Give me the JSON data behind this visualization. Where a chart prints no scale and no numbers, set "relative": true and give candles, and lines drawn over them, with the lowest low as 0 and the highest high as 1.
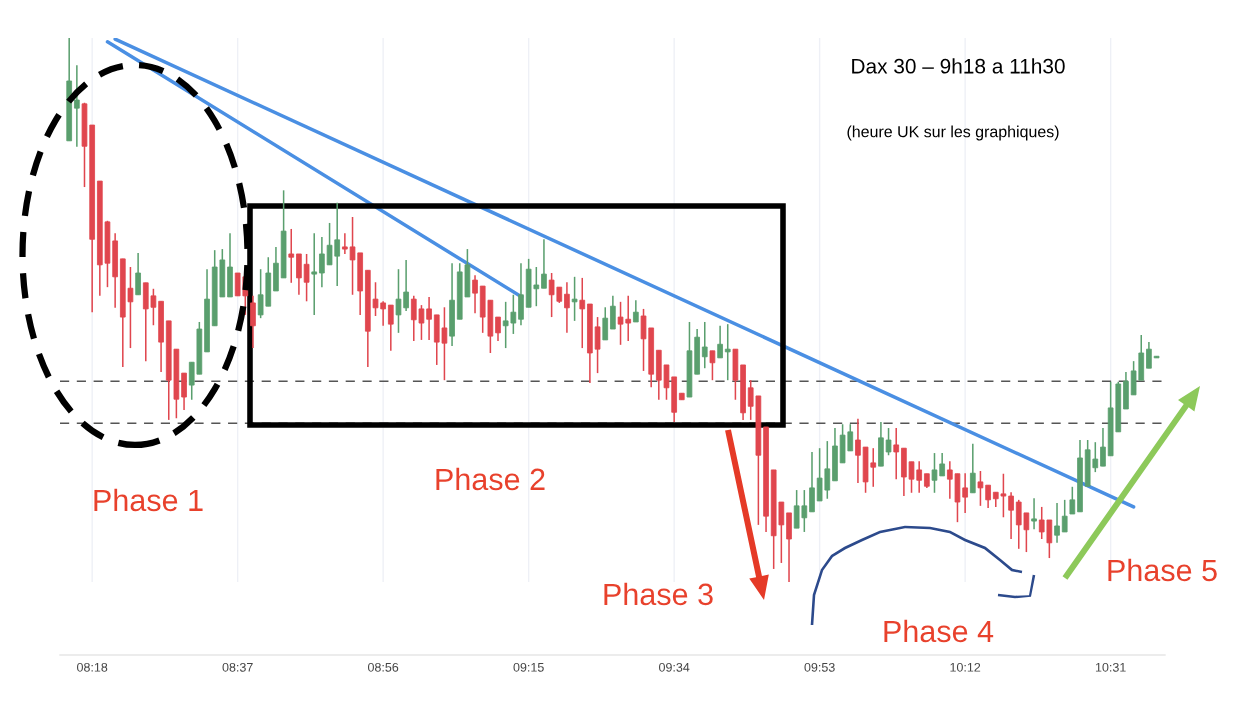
{
  "chart_data": {
    "type": "candlestick",
    "title": "Dax 30 – 9h18 a 11h30",
    "subtitle": "(heure UK sur les graphiques)",
    "annotations": [
      "Phase 1",
      "Phase 2",
      "Phase 3",
      "Phase 4",
      "Phase 5"
    ],
    "relative": true,
    "colors": [
      "#5a9f6e",
      "#5a9f6e",
      "#e0464e",
      "#e0464e",
      "#e0464e",
      "#e0464e",
      "#e0464e",
      "#e0464e",
      "#e0464e",
      "#5a9f6e",
      "#e0464e",
      "#e0464e",
      "#e0464e",
      "#e0464e",
      "#e0464e",
      "#e0464e",
      "#5a9f6e",
      "#5a9f6e",
      "#5a9f6e",
      "#5a9f6e",
      "#5a9f6e",
      "#5a9f6e",
      "#e0464e",
      "#e0464e",
      "#e0464e",
      "#5a9f6e",
      "#5a9f6e",
      "#5a9f6e",
      "#5a9f6e",
      "#e0464e",
      "#e0464e",
      "#e0464e",
      "#5a9f6e",
      "#5a9f6e",
      "#5a9f6e",
      "#5a9f6e",
      "#e0464e",
      "#e0464e",
      "#e0464e",
      "#e0464e",
      "#e0464e",
      "#e0464e",
      "#e0464e",
      "#5a9f6e",
      "#5a9f6e",
      "#e0464e",
      "#e0464e",
      "#e0464e",
      "#e0464e",
      "#e0464e",
      "#5a9f6e",
      "#5a9f6e",
      "#5a9f6e",
      "#e0464e",
      "#e0464e",
      "#e0464e",
      "#e0464e",
      "#5a9f6e",
      "#5a9f6e",
      "#5a9f6e",
      "#5a9f6e",
      "#5a9f6e",
      "#5a9f6e",
      "#e0464e",
      "#e0464e",
      "#e0464e",
      "#5a9f6e",
      "#e0464e",
      "#e0464e",
      "#e0464e",
      "#5a9f6e",
      "#5a9f6e",
      "#e0464e",
      "#e0464e",
      "#5a9f6e",
      "#e0464e",
      "#e0464e",
      "#e0464e",
      "#e0464e",
      "#e0464e",
      "#e0464e",
      "#5a9f6e",
      "#5a9f6e",
      "#5a9f6e",
      "#e0464e",
      "#5a9f6e",
      "#5a9f6e",
      "#e0464e",
      "#e0464e",
      "#e0464e",
      "#e0464e",
      "#e0464e",
      "#e0464e",
      "#e0464e",
      "#e0464e",
      "#5a9f6e",
      "#5a9f6e",
      "#5a9f6e",
      "#5a9f6e",
      "#5a9f6e",
      "#5a9f6e",
      "#5a9f6e",
      "#5a9f6e",
      "#e0464e",
      "#e0464e",
      "#e0464e",
      "#5a9f6e",
      "#5a9f6e",
      "#e0464e",
      "#e0464e",
      "#e0464e",
      "#e0464e",
      "#e0464e",
      "#5a9f6e",
      "#5a9f6e",
      "#e0464e",
      "#e0464e",
      "#e0464e",
      "#5a9f6e",
      "#e0464e",
      "#e0464e",
      "#e0464e",
      "#e0464e",
      "#e0464e",
      "#e0464e",
      "#e0464e",
      "#5a9f6e",
      "#e0464e",
      "#e0464e",
      "#5a9f6e",
      "#5a9f6e",
      "#5a9f6e",
      "#5a9f6e",
      "#5a9f6e",
      "#5a9f6e",
      "#5a9f6e",
      "#5a9f6e",
      "#5a9f6e",
      "#5a9f6e",
      "#5a9f6e",
      "#5a9f6e",
      "#5a9f6e",
      "#5a9f6e"
    ],
    "xlim": [
      8.23,
      10.635
    ],
    "xticks": [
      {
        "value": 8.3,
        "label": "08:18"
      },
      {
        "value": 8.6167,
        "label": "08:37"
      },
      {
        "value": 8.9333,
        "label": "08:56"
      },
      {
        "value": 9.25,
        "label": "09:15"
      },
      {
        "value": 9.5667,
        "label": "09:34"
      },
      {
        "value": 9.8833,
        "label": "09:53"
      },
      {
        "value": 10.2,
        "label": "10:12"
      },
      {
        "value": 10.5167,
        "label": "10:31"
      }
    ],
    "grid": "x",
    "legend": false,
    "x": [
      8.25,
      8.2667,
      8.2833,
      8.3,
      8.3167,
      8.3333,
      8.35,
      8.3667,
      8.3833,
      8.4,
      8.4167,
      8.4333,
      8.45,
      8.4667,
      8.4833,
      8.5,
      8.5167,
      8.5333,
      8.55,
      8.5667,
      8.5833,
      8.6,
      8.6167,
      8.6333,
      8.65,
      8.6667,
      8.6833,
      8.7,
      8.7167,
      8.7333,
      8.75,
      8.7667,
      8.7833,
      8.8,
      8.8167,
      8.8333,
      8.85,
      8.8667,
      8.8833,
      8.9,
      8.9167,
      8.9333,
      8.95,
      8.9667,
      8.9833,
      9,
      9.0167,
      9.0333,
      9.05,
      9.0667,
      9.0833,
      9.1,
      9.1167,
      9.1333,
      9.15,
      9.1667,
      9.1833,
      9.2,
      9.2167,
      9.2333,
      9.25,
      9.2667,
      9.2833,
      9.3,
      9.3167,
      9.3333,
      9.35,
      9.3667,
      9.3833,
      9.4,
      9.4167,
      9.4333,
      9.45,
      9.4667,
      9.4833,
      9.5,
      9.5167,
      9.5333,
      9.55,
      9.5667,
      9.5833,
      9.6,
      9.6167,
      9.6333,
      9.65,
      9.6667,
      9.6833,
      9.7,
      9.7167,
      9.7333,
      9.75,
      9.7667,
      9.7833,
      9.8,
      9.8167,
      9.8333,
      9.85,
      9.8667,
      9.8833,
      9.9,
      9.9167,
      9.9333,
      9.95,
      9.9667,
      9.9833,
      10,
      10.0167,
      10.0333,
      10.05,
      10.0667,
      10.0833,
      10.1,
      10.1167,
      10.1333,
      10.15,
      10.1667,
      10.1833,
      10.2,
      10.2167,
      10.2333,
      10.25,
      10.2667,
      10.2833,
      10.3,
      10.3167,
      10.3333,
      10.35,
      10.3667,
      10.3833,
      10.4,
      10.4167,
      10.4333,
      10.45,
      10.4667,
      10.4833,
      10.5,
      10.5167,
      10.5333,
      10.55,
      10.5667,
      10.5833,
      10.6,
      10.6167
    ],
    "ohlc": [
      [
        0.811,
        1,
        0.811,
        0.921
      ],
      [
        0.871,
        0.95,
        0.8,
        0.886
      ],
      [
        0.879,
        0.881,
        0.726,
        0.801
      ],
      [
        0.84,
        0.84,
        0.496,
        0.63
      ],
      [
        0.737,
        0.737,
        0.526,
        0.583
      ],
      [
        0.662,
        0.664,
        0.542,
        0.586
      ],
      [
        0.627,
        0.641,
        0.504,
        0.561
      ],
      [
        0.594,
        0.594,
        0.395,
        0.487
      ],
      [
        0.54,
        0.579,
        0.43,
        0.515
      ],
      [
        0.528,
        0.605,
        0.528,
        0.568
      ],
      [
        0.55,
        0.55,
        0.406,
        0.502
      ],
      [
        0.526,
        0.539,
        0.472,
        0.505
      ],
      [
        0.516,
        0.516,
        0.386,
        0.441
      ],
      [
        0.48,
        0.48,
        0.298,
        0.371
      ],
      [
        0.428,
        0.428,
        0.301,
        0.336
      ],
      [
        0.384,
        0.384,
        0.316,
        0.34
      ],
      [
        0.362,
        0.404,
        0.335,
        0.404
      ],
      [
        0.382,
        0.478,
        0.382,
        0.465
      ],
      [
        0.423,
        0.575,
        0.423,
        0.52
      ],
      [
        0.471,
        0.61,
        0.471,
        0.579
      ],
      [
        0.524,
        0.612,
        0.524,
        0.592
      ],
      [
        0.524,
        0.641,
        0.524,
        0.579
      ],
      [
        0.568,
        0.568,
        0.526,
        0.526
      ],
      [
        0.561,
        0.561,
        0.491,
        0.526
      ],
      [
        0.513,
        0.526,
        0.43,
        0.471
      ],
      [
        0.491,
        0.575,
        0.485,
        0.528
      ],
      [
        0.507,
        0.597,
        0.507,
        0.568
      ],
      [
        0.535,
        0.616,
        0.535,
        0.586
      ],
      [
        0.559,
        0.72,
        0.559,
        0.645
      ],
      [
        0.603,
        0.649,
        0.55,
        0.597
      ],
      [
        0.603,
        0.603,
        0.528,
        0.559
      ],
      [
        0.584,
        0.603,
        0.516,
        0.551
      ],
      [
        0.566,
        0.641,
        0.491,
        0.57
      ],
      [
        0.568,
        0.634,
        0.542,
        0.603
      ],
      [
        0.583,
        0.66,
        0.583,
        0.619
      ],
      [
        0.599,
        0.697,
        0.544,
        0.629
      ],
      [
        0.616,
        0.641,
        0.603,
        0.612
      ],
      [
        0.616,
        0.671,
        0.528,
        0.592
      ],
      [
        0.605,
        0.605,
        0.491,
        0.535
      ],
      [
        0.573,
        0.573,
        0.395,
        0.461
      ],
      [
        0.52,
        0.551,
        0.489,
        0.504
      ],
      [
        0.513,
        0.516,
        0.471,
        0.502
      ],
      [
        0.509,
        0.509,
        0.425,
        0.474
      ],
      [
        0.491,
        0.575,
        0.458,
        0.52
      ],
      [
        0.504,
        0.592,
        0.498,
        0.533
      ],
      [
        0.52,
        0.526,
        0.443,
        0.482
      ],
      [
        0.502,
        0.509,
        0.445,
        0.476
      ],
      [
        0.502,
        0.524,
        0.445,
        0.483
      ],
      [
        0.491,
        0.491,
        0.399,
        0.441
      ],
      [
        0.467,
        0.505,
        0.371,
        0.439
      ],
      [
        0.452,
        0.586,
        0.434,
        0.518
      ],
      [
        0.483,
        0.586,
        0.483,
        0.57
      ],
      [
        0.524,
        0.612,
        0.524,
        0.583
      ],
      [
        0.555,
        0.564,
        0.494,
        0.531
      ],
      [
        0.544,
        0.544,
        0.458,
        0.487
      ],
      [
        0.518,
        0.518,
        0.421,
        0.452
      ],
      [
        0.487,
        0.487,
        0.443,
        0.458
      ],
      [
        0.471,
        0.515,
        0.43,
        0.48
      ],
      [
        0.476,
        0.528,
        0.456,
        0.496
      ],
      [
        0.483,
        0.586,
        0.472,
        0.528
      ],
      [
        0.505,
        0.594,
        0.505,
        0.575
      ],
      [
        0.539,
        0.579,
        0.507,
        0.546
      ],
      [
        0.54,
        0.63,
        0.54,
        0.566
      ],
      [
        0.555,
        0.568,
        0.487,
        0.528
      ],
      [
        0.542,
        0.542,
        0.513,
        0.516
      ],
      [
        0.529,
        0.551,
        0.458,
        0.504
      ],
      [
        0.515,
        0.561,
        0.48,
        0.52
      ],
      [
        0.518,
        0.559,
        0.43,
        0.502
      ],
      [
        0.511,
        0.511,
        0.366,
        0.421
      ],
      [
        0.469,
        0.487,
        0.384,
        0.428
      ],
      [
        0.445,
        0.505,
        0.445,
        0.485
      ],
      [
        0.465,
        0.526,
        0.465,
        0.507
      ],
      [
        0.487,
        0.515,
        0.436,
        0.474
      ],
      [
        0.483,
        0.526,
        0.443,
        0.476
      ],
      [
        0.478,
        0.518,
        0.478,
        0.496
      ],
      [
        0.489,
        0.502,
        0.388,
        0.447
      ],
      [
        0.467,
        0.467,
        0.358,
        0.382
      ],
      [
        0.426,
        0.426,
        0.335,
        0.371
      ],
      [
        0.399,
        0.399,
        0.335,
        0.357
      ],
      [
        0.377,
        0.377,
        0.294,
        0.312
      ],
      [
        0.347,
        0.347,
        0.335,
        0.335
      ],
      [
        0.34,
        0.478,
        0.34,
        0.425
      ],
      [
        0.382,
        0.465,
        0.382,
        0.45
      ],
      [
        0.414,
        0.478,
        0.393,
        0.432
      ],
      [
        0.425,
        0.425,
        0.371,
        0.403
      ],
      [
        0.412,
        0.471,
        0.412,
        0.437
      ],
      [
        0.423,
        0.474,
        0.371,
        0.428
      ],
      [
        0.428,
        0.428,
        0.335,
        0.371
      ],
      [
        0.399,
        0.399,
        0.298,
        0.311
      ],
      [
        0.357,
        0.371,
        0.298,
        0.323
      ],
      [
        0.342,
        0.342,
        0.105,
        0.233
      ],
      [
        0.285,
        0.285,
        0.092,
        0.121
      ],
      [
        0.206,
        0.206,
        0.024,
        0.085
      ],
      [
        0.147,
        0.147,
        0.035,
        0.105
      ],
      [
        0.127,
        0.127,
        0,
        0.079
      ],
      [
        0.099,
        0.169,
        0.099,
        0.14
      ],
      [
        0.118,
        0.169,
        0.092,
        0.14
      ],
      [
        0.129,
        0.239,
        0.129,
        0.173
      ],
      [
        0.149,
        0.246,
        0.149,
        0.191
      ],
      [
        0.169,
        0.259,
        0.153,
        0.208
      ],
      [
        0.186,
        0.283,
        0.186,
        0.25
      ],
      [
        0.219,
        0.29,
        0.219,
        0.27
      ],
      [
        0.241,
        0.29,
        0.241,
        0.276
      ],
      [
        0.261,
        0.3,
        0.182,
        0.233
      ],
      [
        0.248,
        0.248,
        0.164,
        0.184
      ],
      [
        0.219,
        0.246,
        0.175,
        0.211
      ],
      [
        0.213,
        0.294,
        0.213,
        0.265
      ],
      [
        0.239,
        0.283,
        0.233,
        0.261
      ],
      [
        0.252,
        0.283,
        0.189,
        0.239
      ],
      [
        0.246,
        0.246,
        0.158,
        0.193
      ],
      [
        0.221,
        0.221,
        0.164,
        0.189
      ],
      [
        0.206,
        0.222,
        0.164,
        0.187
      ],
      [
        0.199,
        0.199,
        0.173,
        0.176
      ],
      [
        0.187,
        0.237,
        0.164,
        0.206
      ],
      [
        0.195,
        0.237,
        0.195,
        0.217
      ],
      [
        0.206,
        0.222,
        0.153,
        0.189
      ],
      [
        0.199,
        0.199,
        0.11,
        0.147
      ],
      [
        0.173,
        0.2,
        0.127,
        0.156
      ],
      [
        0.164,
        0.254,
        0.164,
        0.2
      ],
      [
        0.184,
        0.204,
        0.14,
        0.173
      ],
      [
        0.178,
        0.178,
        0.136,
        0.151
      ],
      [
        0.165,
        0.165,
        0.138,
        0.153
      ],
      [
        0.162,
        0.199,
        0.119,
        0.158
      ],
      [
        0.158,
        0.165,
        0.079,
        0.132
      ],
      [
        0.147,
        0.151,
        0.061,
        0.105
      ],
      [
        0.127,
        0.127,
        0.055,
        0.096
      ],
      [
        0.112,
        0.154,
        0.097,
        0.116
      ],
      [
        0.114,
        0.138,
        0.079,
        0.092
      ],
      [
        0.114,
        0.114,
        0.044,
        0.072
      ],
      [
        0.086,
        0.145,
        0.072,
        0.103
      ],
      [
        0.092,
        0.151,
        0.092,
        0.121
      ],
      [
        0.125,
        0.175,
        0.125,
        0.151
      ],
      [
        0.129,
        0.261,
        0.129,
        0.228
      ],
      [
        0.176,
        0.261,
        0.176,
        0.243
      ],
      [
        0.21,
        0.257,
        0.202,
        0.226
      ],
      [
        0.213,
        0.283,
        0.213,
        0.248
      ],
      [
        0.232,
        0.368,
        0.232,
        0.32
      ],
      [
        0.276,
        0.368,
        0.276,
        0.364
      ],
      [
        0.318,
        0.386,
        0.318,
        0.369
      ],
      [
        0.344,
        0.406,
        0.344,
        0.388
      ],
      [
        0.371,
        0.454,
        0.371,
        0.421
      ],
      [
        0.393,
        0.441,
        0.393,
        0.428
      ],
      [
        0.412,
        0.415,
        0.412,
        0.415
      ]
    ],
    "series": [
      {
        "type": "line",
        "color": "#4a8fe3",
        "x": [
          8.35,
          10.5667
        ],
        "values": [
          0.998,
          0.138
        ]
      },
      {
        "type": "line",
        "color": "#4a8fe3",
        "x": [
          8.3333,
          9.235
        ],
        "values": [
          0.993,
          0.524
        ]
      }
    ],
    "ref_lines": [
      {
        "axis": "y",
        "value": 0.369,
        "color": "#555555",
        "line_style": "dashed"
      },
      {
        "axis": "y",
        "value": 0.292,
        "color": "#555555",
        "line_style": "dashed"
      }
    ]
  }
}
